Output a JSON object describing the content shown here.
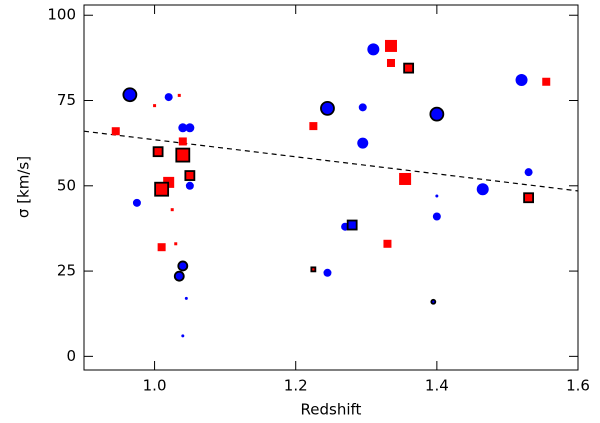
{
  "chart_data": {
    "type": "scatter",
    "x_label": "Redshift",
    "y_label": "σ [km/s]",
    "xlim": [
      0.9,
      1.6
    ],
    "ylim": [
      -4,
      103
    ],
    "xticks": [
      {
        "value": 1,
        "label": "1.0"
      },
      1.2,
      1.4,
      1.6
    ],
    "yticks": [
      0,
      25,
      50,
      75,
      100
    ],
    "series": [
      {
        "marker": "circle",
        "color": "#0000ff",
        "edge": "none",
        "x": [
          0.975,
          1.02,
          1.04,
          1.05,
          1.05,
          1.045,
          1.04,
          1.245,
          1.27,
          1.295,
          1.295,
          1.31,
          1.4,
          1.4,
          1.465,
          1.52,
          1.53
        ],
        "values": [
          45,
          76,
          67,
          67,
          50,
          17,
          6,
          24.5,
          38,
          73,
          62.5,
          90,
          47,
          41,
          49,
          81,
          54
        ],
        "sizes": [
          4,
          4,
          4.5,
          4.5,
          4,
          1.5,
          1.5,
          4,
          4,
          4,
          5.5,
          6,
          1.5,
          4,
          6,
          6,
          4
        ]
      },
      {
        "marker": "square",
        "color": "#ff0000",
        "edge": "none",
        "x": [
          0.945,
          1.0,
          1.01,
          1.02,
          1.025,
          1.03,
          1.035,
          1.04,
          1.225,
          1.335,
          1.335,
          1.33,
          1.355,
          1.555
        ],
        "values": [
          66,
          73.5,
          32,
          51,
          43,
          33,
          76.5,
          63,
          67.5,
          86,
          91,
          33,
          52,
          80.5
        ],
        "sizes": [
          4,
          1.5,
          4,
          5.5,
          1.5,
          1.5,
          1.5,
          4,
          4,
          4,
          6,
          4,
          6,
          4
        ]
      },
      {
        "marker": "square",
        "color": "#ff0000",
        "edge": "#000000",
        "x": [
          1.005,
          1.01,
          1.04,
          1.05,
          1.225,
          1.36,
          1.53
        ],
        "values": [
          60,
          49,
          59,
          53,
          25.5,
          84.5,
          46.5
        ],
        "sizes": [
          4.5,
          6.5,
          6.5,
          4.5,
          2,
          4.5,
          4.5
        ]
      },
      {
        "marker": "circle",
        "color": "#0000ff",
        "edge": "#000000",
        "x": [
          0.965,
          1.04,
          1.035,
          1.245,
          1.4,
          1.395
        ],
        "values": [
          76.7,
          26.5,
          23.5,
          72.7,
          71,
          16
        ],
        "sizes": [
          6.5,
          4.5,
          4.5,
          6.5,
          6.5,
          2
        ]
      },
      {
        "marker": "square",
        "color": "#0000ff",
        "edge": "#000000",
        "x": [
          1.28
        ],
        "values": [
          38.5
        ],
        "sizes": [
          4.5
        ]
      }
    ],
    "lines": [
      {
        "x": [
          0.9,
          1.6
        ],
        "values": [
          66,
          48.5
        ],
        "color": "#000000",
        "dash": true
      }
    ]
  }
}
